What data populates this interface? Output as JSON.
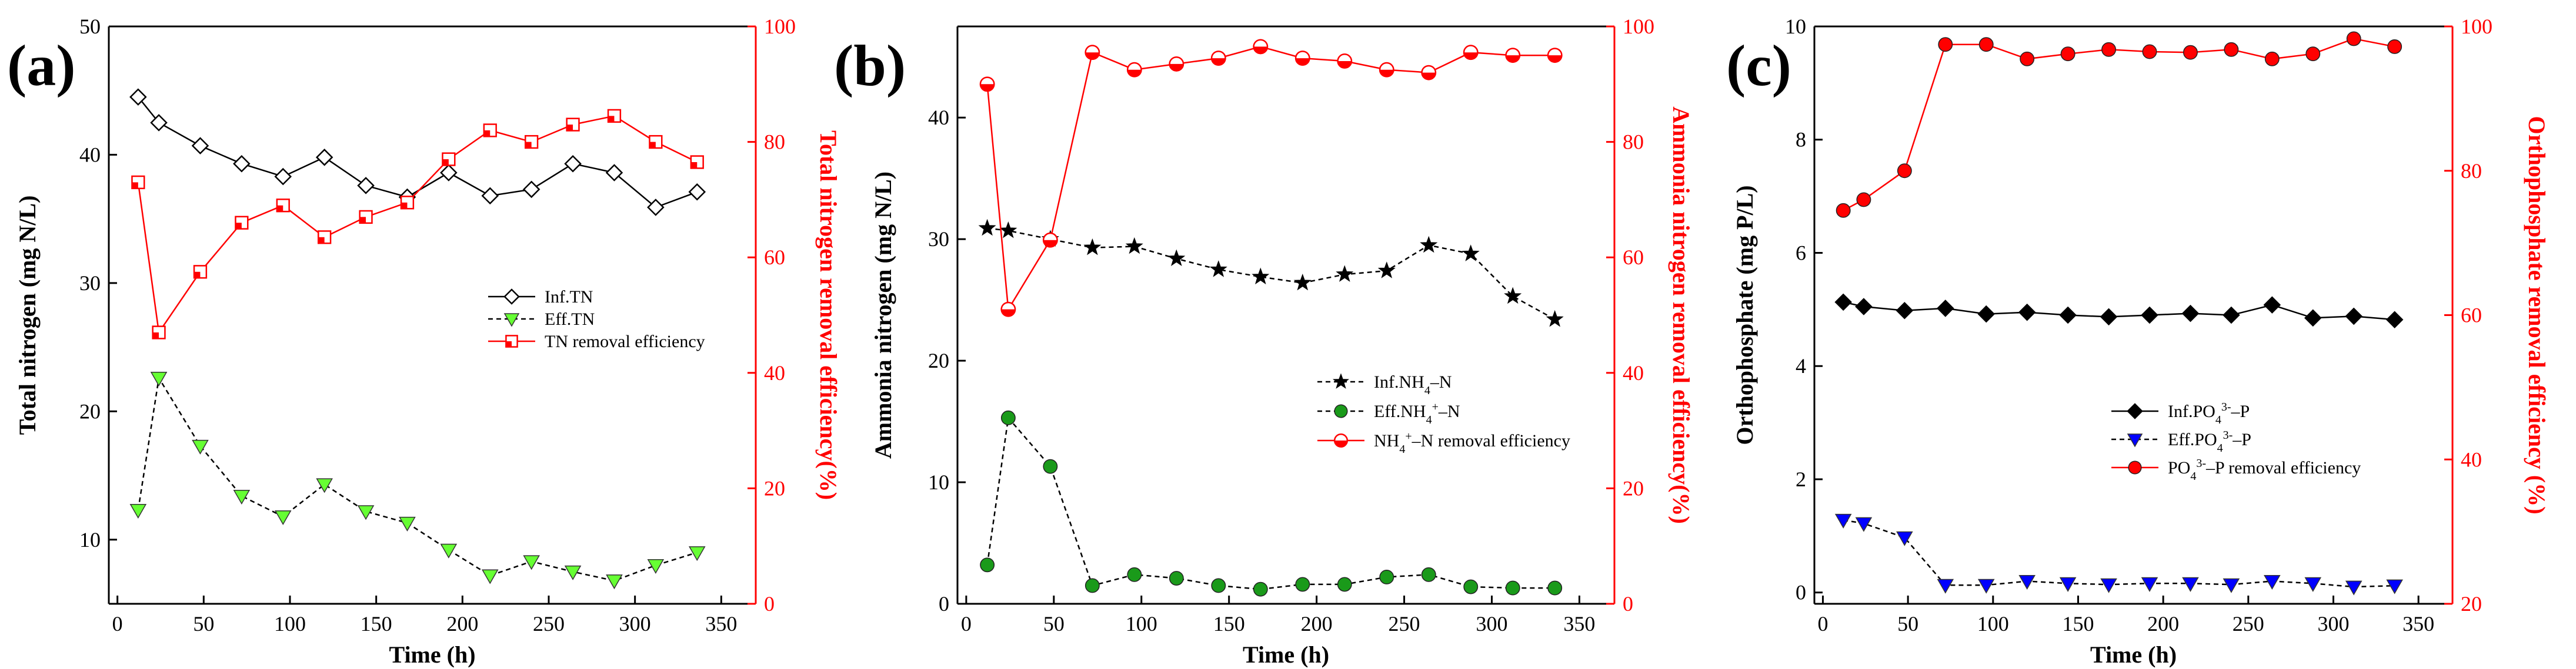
{
  "chart_data": [
    {
      "type": "line",
      "panel_label": "(a)",
      "xlabel": "Time (h)",
      "ylabel_left": "Total nitrogen (mg N/L)",
      "ylabel_right": "Total nitrogen removal efficiency(%)",
      "xlim": [
        -5,
        370
      ],
      "ylim_left": [
        5,
        50
      ],
      "ylim_right": [
        0,
        100
      ],
      "xticks": [
        "0",
        "50",
        "100",
        "150",
        "200",
        "250",
        "300",
        "350"
      ],
      "yticks_left": [
        "10",
        "20",
        "30",
        "40",
        "50"
      ],
      "yticks_right": [
        "0",
        "20",
        "40",
        "60",
        "80",
        "100"
      ],
      "legend_position": "center-right",
      "series": [
        {
          "name": "Inf.TN",
          "axis": "left",
          "color": "#000000",
          "marker": "diamond-open",
          "style": "solid",
          "x": [
            12,
            24,
            48,
            72,
            96,
            120,
            144,
            168,
            192,
            216,
            240,
            264,
            288,
            312,
            336
          ],
          "values": [
            44.5,
            42.5,
            40.7,
            39.3,
            38.3,
            39.8,
            37.6,
            36.7,
            38.6,
            36.8,
            37.3,
            39.3,
            38.6,
            35.9,
            37.1
          ]
        },
        {
          "name": "Eff.TN",
          "axis": "left",
          "color": "#66ff33",
          "marker": "triangle-down",
          "style": "dashed",
          "x": [
            12,
            24,
            48,
            72,
            96,
            120,
            144,
            168,
            192,
            216,
            240,
            264,
            288,
            312,
            336
          ],
          "values": [
            12.3,
            22.6,
            17.3,
            13.4,
            11.8,
            14.3,
            12.2,
            11.3,
            9.2,
            7.2,
            8.3,
            7.5,
            6.8,
            8.0,
            9.0
          ]
        },
        {
          "name": "TN removal efficiency",
          "axis": "right",
          "color": "#ff0000",
          "marker": "square-half",
          "style": "solid",
          "x": [
            12,
            24,
            48,
            72,
            96,
            120,
            144,
            168,
            192,
            216,
            240,
            264,
            288,
            312,
            336
          ],
          "values": [
            73,
            47,
            57.5,
            66,
            69,
            63.5,
            67,
            69.5,
            77,
            82,
            80,
            83,
            84.5,
            80,
            76.5
          ]
        }
      ]
    },
    {
      "type": "line",
      "panel_label": "(b)",
      "xlabel": "Time (h)",
      "ylabel_left": "Ammonia nitrogen (mg N/L)",
      "ylabel_right": "Ammonia nitrogen removal efficiency(%)",
      "xlim": [
        -5,
        370
      ],
      "ylim_left": [
        0,
        47.5
      ],
      "ylim_right": [
        0,
        100
      ],
      "xticks": [
        "0",
        "50",
        "100",
        "150",
        "200",
        "250",
        "300",
        "350"
      ],
      "yticks_left": [
        "0",
        "10",
        "20",
        "30",
        "40"
      ],
      "yticks_right": [
        "0",
        "20",
        "40",
        "60",
        "80",
        "100"
      ],
      "legend_position": "center-right",
      "series": [
        {
          "name": "Inf.NH4+-N",
          "legend_text": "Inf.NH",
          "legend_sub": "4",
          "legend_suffix": "–N",
          "axis": "left",
          "color": "#000000",
          "marker": "star",
          "style": "dashed",
          "x": [
            12,
            24,
            48,
            72,
            96,
            120,
            144,
            168,
            192,
            216,
            240,
            264,
            288,
            312,
            336
          ],
          "values": [
            30.9,
            30.7,
            30.0,
            29.3,
            29.4,
            28.4,
            27.5,
            26.9,
            26.4,
            27.1,
            27.4,
            29.5,
            28.8,
            25.3,
            23.4
          ]
        },
        {
          "name": "Eff.NH4+-N",
          "legend_text": "Eff.NH",
          "legend_sub": "4",
          "legend_sup": "+",
          "legend_suffix": "–N",
          "axis": "left",
          "color": "#1a9a1a",
          "marker": "circle-filled",
          "style": "dashed",
          "x": [
            12,
            24,
            48,
            72,
            96,
            120,
            144,
            168,
            192,
            216,
            240,
            264,
            288,
            312,
            336
          ],
          "values": [
            3.2,
            15.3,
            11.3,
            1.5,
            2.4,
            2.1,
            1.5,
            1.2,
            1.6,
            1.6,
            2.2,
            2.4,
            1.4,
            1.3,
            1.3
          ]
        },
        {
          "name": "NH4+-N removal efficiency",
          "legend_text": "NH",
          "legend_sub": "4",
          "legend_sup": "+",
          "legend_suffix": "–N removal efficiency",
          "axis": "right",
          "color": "#ff0000",
          "marker": "circle-half",
          "style": "solid",
          "x": [
            12,
            24,
            48,
            72,
            96,
            120,
            144,
            168,
            192,
            216,
            240,
            264,
            288,
            312,
            336
          ],
          "values": [
            90,
            51,
            63,
            95.5,
            92.5,
            93.5,
            94.5,
            96.5,
            94.5,
            94,
            92.5,
            92,
            95.5,
            95,
            95
          ]
        }
      ]
    },
    {
      "type": "line",
      "panel_label": "(c)",
      "xlabel": "Time (h)",
      "ylabel_left": "Orthophosphate (mg P/L)",
      "ylabel_right": "Orthophosphate removal efficiency (%)",
      "xlim": [
        -5,
        370
      ],
      "ylim_left": [
        -0.2,
        10
      ],
      "ylim_right": [
        20,
        100
      ],
      "xticks": [
        "0",
        "50",
        "100",
        "150",
        "200",
        "250",
        "300",
        "350"
      ],
      "yticks_left": [
        "0",
        "2",
        "4",
        "6",
        "8",
        "10"
      ],
      "yticks_right": [
        "20",
        "40",
        "60",
        "80",
        "100"
      ],
      "legend_position": "bottom-right",
      "series": [
        {
          "name": "Inf.PO43--P",
          "legend_text": "Inf.PO",
          "legend_sub": "4",
          "legend_sup": "3-",
          "legend_suffix": "–P",
          "axis": "left",
          "color": "#000000",
          "marker": "diamond-filled",
          "style": "solid",
          "x": [
            12,
            24,
            48,
            72,
            96,
            120,
            144,
            168,
            192,
            216,
            240,
            264,
            288,
            312,
            336
          ],
          "values": [
            5.13,
            5.05,
            4.98,
            5.02,
            4.92,
            4.95,
            4.9,
            4.87,
            4.9,
            4.93,
            4.9,
            5.08,
            4.85,
            4.88,
            4.82
          ]
        },
        {
          "name": "Eff.PO43--P",
          "legend_text": "Eff.PO",
          "legend_sub": "4",
          "legend_sup": "3-",
          "legend_suffix": "–P",
          "axis": "left",
          "color": "#0000ff",
          "marker": "triangle-down",
          "style": "dashed",
          "x": [
            12,
            24,
            48,
            72,
            96,
            120,
            144,
            168,
            192,
            216,
            240,
            264,
            288,
            312,
            336
          ],
          "values": [
            1.28,
            1.22,
            0.97,
            0.13,
            0.13,
            0.2,
            0.16,
            0.14,
            0.16,
            0.16,
            0.14,
            0.2,
            0.16,
            0.1,
            0.12
          ]
        },
        {
          "name": "PO43--P removal efficiency",
          "legend_text": "PO",
          "legend_sub": "4",
          "legend_sup": "3-",
          "legend_suffix": "–P removal efficiency",
          "axis": "right",
          "color": "#ff0000",
          "marker": "circle-filled",
          "style": "solid",
          "x": [
            12,
            24,
            48,
            72,
            96,
            120,
            144,
            168,
            192,
            216,
            240,
            264,
            288,
            312,
            336
          ],
          "values": [
            74.5,
            76,
            80,
            97.5,
            97.5,
            95.5,
            96.2,
            96.8,
            96.5,
            96.4,
            96.8,
            95.5,
            96.2,
            98.3,
            97.2
          ]
        }
      ]
    }
  ]
}
